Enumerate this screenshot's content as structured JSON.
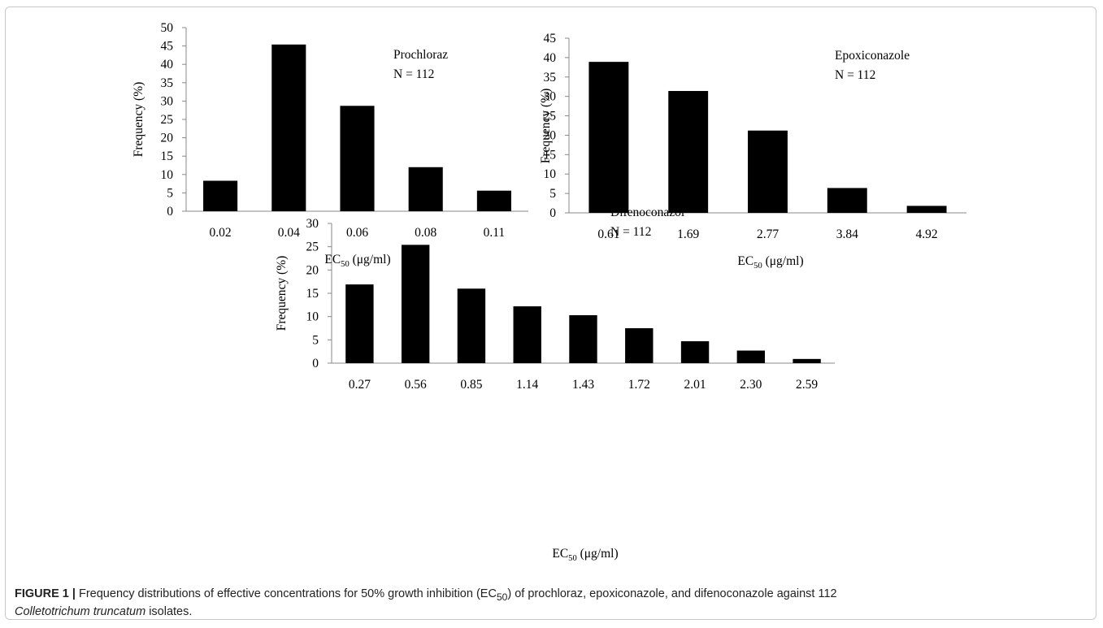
{
  "chart_data": [
    {
      "type": "bar",
      "annotation": {
        "name": "Prochloraz",
        "n": "N = 112"
      },
      "categories": [
        "0.02",
        "0.04",
        "0.06",
        "0.08",
        "0.11"
      ],
      "values": [
        8.3,
        45.4,
        28.7,
        12.0,
        5.6
      ],
      "ylabel": "Frequency  (%)",
      "xlabel": {
        "main": "EC",
        "sub": "50",
        "unit": " (μg/ml)"
      },
      "ylim": [
        0,
        50
      ],
      "yticks": [
        "0",
        "5",
        "10",
        "15",
        "20",
        "25",
        "30",
        "35",
        "40",
        "45",
        "50"
      ],
      "bar_color": "#000000",
      "grid": false
    },
    {
      "type": "bar",
      "annotation": {
        "name": "Epoxiconazole",
        "n": "N = 112"
      },
      "categories": [
        "0.61",
        "1.69",
        "2.77",
        "3.84",
        "4.92"
      ],
      "values": [
        38.9,
        31.4,
        21.2,
        6.4,
        1.8
      ],
      "ylabel": "Frequency  (%)",
      "xlabel": {
        "main": "EC",
        "sub": "50",
        "unit": " (μg/ml)"
      },
      "ylim": [
        0,
        45
      ],
      "yticks": [
        "0",
        "5",
        "10",
        "15",
        "20",
        "25",
        "30",
        "35",
        "40",
        "45"
      ],
      "bar_color": "#000000",
      "grid": false
    },
    {
      "type": "bar",
      "annotation": {
        "name": "Difenoconazol",
        "n": "N = 112"
      },
      "categories": [
        "0.27",
        "0.56",
        "0.85",
        "1.14",
        "1.43",
        "1.72",
        "2.01",
        "2.30",
        "2.59"
      ],
      "values": [
        16.9,
        25.4,
        16.0,
        12.2,
        10.3,
        7.5,
        4.7,
        2.7,
        0.9
      ],
      "ylabel": "Frequency (%)",
      "xlabel": {
        "main": "EC",
        "sub": "50",
        "unit": " (μg/ml)"
      },
      "ylim": [
        0,
        30
      ],
      "yticks": [
        "0",
        "5",
        "10",
        "15",
        "20",
        "25",
        "30"
      ],
      "bar_color": "#000000",
      "grid": false
    }
  ],
  "caption": {
    "label": "FIGURE 1 |",
    "text_before": " Frequency distributions of effective concentrations for 50% growth inhibition (EC",
    "sub": "50",
    "text_after": ") of prochloraz, epoxiconazole, and difenoconazole against 112",
    "species": "Colletotrichum truncatum",
    "text_end": " isolates."
  }
}
